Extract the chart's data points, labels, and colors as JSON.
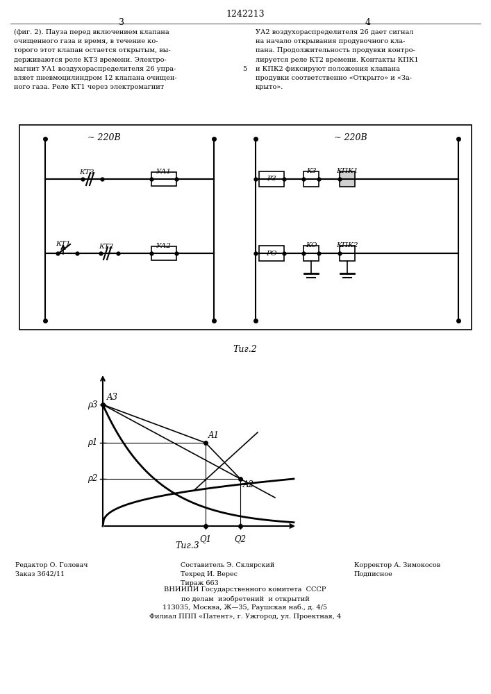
{
  "title": "1242213",
  "page_left": "3",
  "page_right": "4",
  "text_left": "(фиг. 2). Пауза перед включением клапана\nочищенного газа и время, в течение ко-\nторого этот клапан остается открытым, вы-\nдерживаются реле КТЗ времени. Электро-\nмагнит УА1 воздухораспределителя 26 упра-\nвляет пневмоцилиндром 12 клапана очищен-\nного газа. Реле КТ1 через электромагнит",
  "text_right": "УА2 воздухораспределителя 26 дает сигнал\nна начало открывания продувочного кла-\nпана. Продолжительность продувки контро-\nлируется реле КТ2 времени. Контакты КПК1\nи КПК2 фиксируют положения клапана\nпродувки соответственно «Открыто» и «За-\nкрыто».",
  "line5": "5",
  "fig2_caption": "Τиг.2",
  "fig3_caption": "Τиг.3",
  "volt1": "~ 220В",
  "volt2": "~ 220В",
  "lbl_kt3": "КТЗ",
  "lbl_ua1": "УА1",
  "lbl_kt1": "КТ1",
  "lbl_kt2": "КТ2",
  "lbl_ua2": "УА2",
  "lbl_r3": "РЗ",
  "lbl_k3": "КЗ",
  "lbl_kpk1": "КПК1",
  "lbl_ro": "РО",
  "lbl_ko": "КО",
  "lbl_kpk2": "КПК2",
  "lbl_A3": "A3",
  "lbl_A1": "A1",
  "lbl_A2": "A2",
  "lbl_p3": "ρ3",
  "lbl_p1": "ρ1",
  "lbl_p2": "ρ2",
  "lbl_Q1": "Q1",
  "lbl_Q2": "Q2",
  "foot_l1": "Редактор О. Головач",
  "foot_l2": "Заказ 3642/11",
  "foot_c1": "Составитель Э. Склярский",
  "foot_c2": "Техред И. Верес",
  "foot_c3": "Тираж 663",
  "foot_r1": "Корректор А. Зимокосов",
  "foot_r2": "Подписное",
  "foot_v1": "ВНИИПИ Государственного комитета  СССР",
  "foot_v2": "по делам  изобретений  и открытий",
  "foot_v3": "113035, Москва, Ж—35, Раушская наб., д. 4/5",
  "foot_v4": "Филиал ППП «Патент», г. Ужгород, ул. Проектная, 4"
}
